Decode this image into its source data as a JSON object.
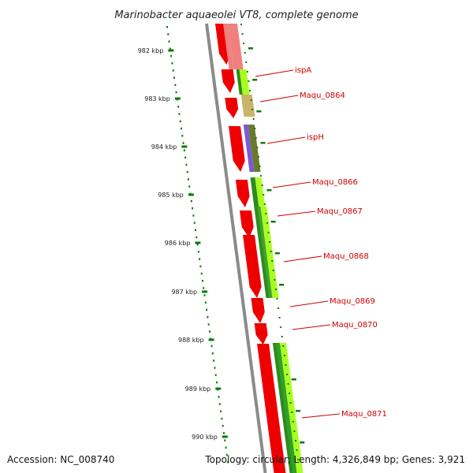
{
  "map": {
    "title": "Marinobacter aquaeolei VT8, complete genome",
    "accession": "Accession: NC_008740",
    "topology": "Topology: circular; Length: 4,326,849 bp; Genes: 3,921",
    "ruler_labels": [
      "982 kbp",
      "983 kbp",
      "984 kbp",
      "985 kbp",
      "986 kbp",
      "987 kbp",
      "988 kbp",
      "989 kbp",
      "990 kbp"
    ],
    "gene_labels": [
      "ispA",
      "Maqu_0864",
      "ispH",
      "Maqu_0866",
      "Maqu_0867",
      "Maqu_0868",
      "Maqu_0869",
      "Maqu_0870",
      "Maqu_0871"
    ],
    "colors": {
      "backbone": "#8a8a8a",
      "cds": "#ee0000",
      "ruler": "#0a7a0a",
      "label": "#cc0000",
      "track_green": "#2e8b1e",
      "track_lime": "#aaff22",
      "track_khaki": "#c8b46a",
      "track_purple": "#7a5ad6",
      "track_olive": "#6b7a2a",
      "track_pink": "#f08080"
    }
  }
}
